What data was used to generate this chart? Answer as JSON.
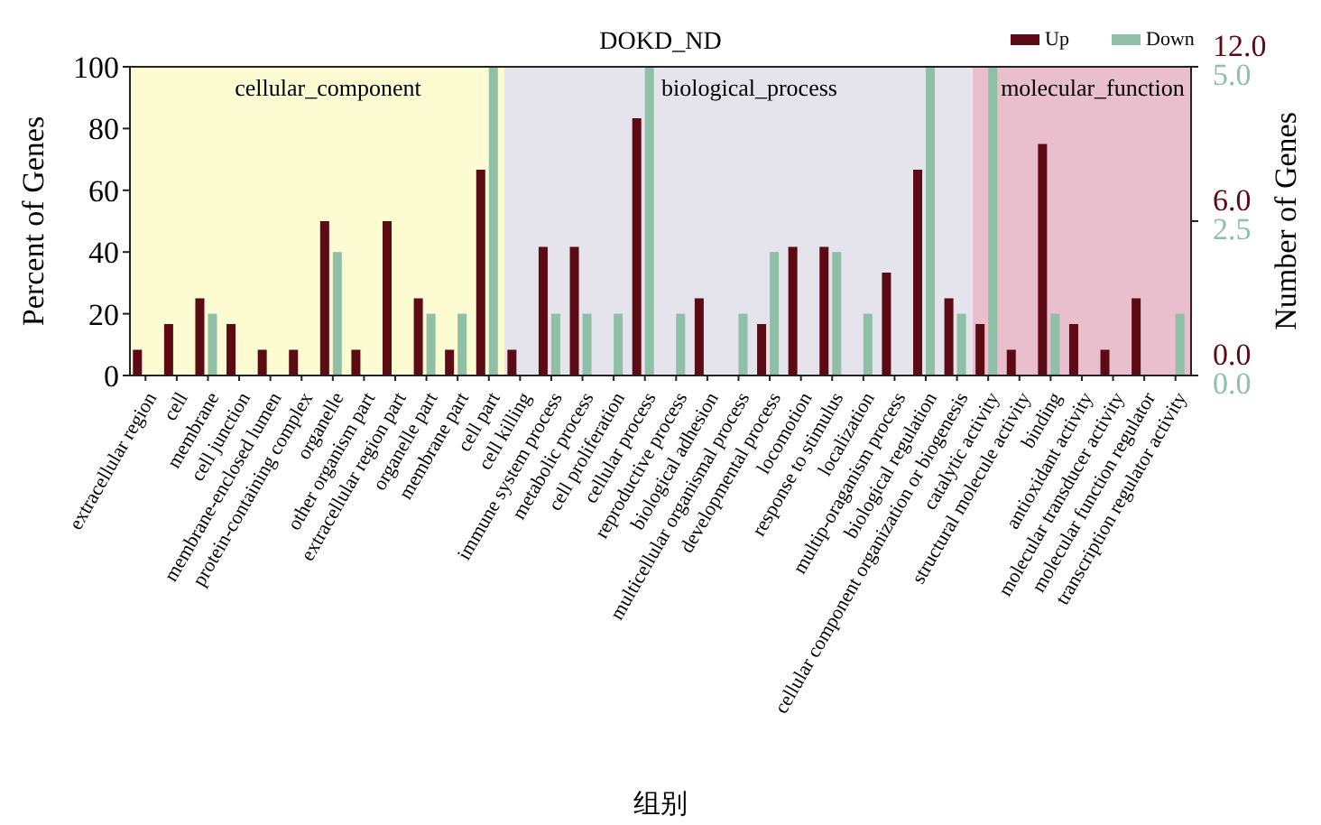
{
  "chart_data": {
    "type": "bar",
    "title": "DOKD_ND",
    "xlabel": "组别",
    "ylabel": "Percent of Genes",
    "y2label": "Number of Genes",
    "categories": [
      "extracellular region",
      "cell",
      "membrane",
      "cell junction",
      "membrane-enclosed lumen",
      "protein-containing complex",
      "organelle",
      "other organism part",
      "extracellular region part",
      "organelle part",
      "membrane part",
      "cell part",
      "cell killing",
      "immune system process",
      "metabolic process",
      "cell proliferation",
      "cellular process",
      "reproductive process",
      "biological adhesion",
      "multicellular organismal process",
      "developmental process",
      "locomotion",
      "response to stimulus",
      "localization",
      "multip-oraganism process",
      "biological regulation",
      "cellular component organization or biogenesis",
      "catalytic activity",
      "structural molecule activity",
      "binding",
      "antioxidant activity",
      "molecular transducer activity",
      "molecular function regulator",
      "transcription regulator activity"
    ],
    "series": [
      {
        "name": "Up",
        "color": "#5c0a14",
        "axis": "y2",
        "values": [
          1,
          2,
          3,
          2,
          1,
          1,
          6,
          1,
          6,
          3,
          1,
          8,
          1,
          5,
          5,
          0,
          10,
          0,
          3,
          0,
          2,
          5,
          5,
          0,
          4,
          8,
          3,
          2,
          1,
          9,
          2,
          1,
          3,
          0
        ]
      },
      {
        "name": "Down",
        "color": "#8fbfa6",
        "axis": "y3",
        "values": [
          0,
          0,
          1,
          0,
          0,
          0,
          2,
          0,
          0,
          1,
          1,
          5,
          0,
          1,
          1,
          1,
          5,
          1,
          0,
          1,
          2,
          0,
          2,
          1,
          0,
          5,
          1,
          5,
          0,
          1,
          0,
          0,
          0,
          1
        ]
      }
    ],
    "ylim": [
      0,
      100
    ],
    "yticks": [
      0,
      20,
      40,
      60,
      80,
      100
    ],
    "y2lim": [
      0,
      12
    ],
    "y2ticks": [
      {
        "value": 0,
        "label": "0.0"
      },
      {
        "value": 6,
        "label": "6.0"
      },
      {
        "value": 12,
        "label": "12.0"
      }
    ],
    "y3lim": [
      0,
      5
    ],
    "y3ticks": [
      {
        "value": 0,
        "label": "0.0"
      },
      {
        "value": 2.5,
        "label": "2.5"
      },
      {
        "value": 5,
        "label": "5.0"
      }
    ],
    "bands": [
      {
        "axis": "x",
        "from": "extracellular region",
        "to": "cell part",
        "label": "cellular_component",
        "color": "#fdfbd2"
      },
      {
        "axis": "x",
        "from": "cell killing",
        "to": "cellular component organization or biogenesis",
        "label": "biological_process",
        "color": "#e5e3ec"
      },
      {
        "axis": "x",
        "from": "catalytic activity",
        "to": "transcription regulator activity",
        "label": "molecular_function",
        "color": "#eabfcd"
      }
    ],
    "legend": "top right"
  }
}
